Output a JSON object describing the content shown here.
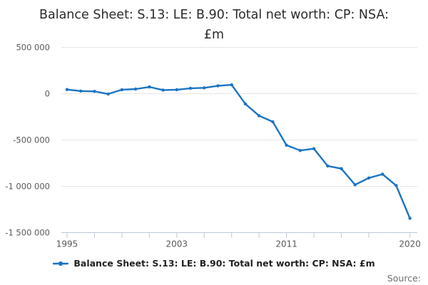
{
  "title": {
    "text": "Balance Sheet: S.13: LE: B.90: Total net worth: CP: NSA: £m",
    "lines": [
      "Balance Sheet: S.13: LE: B.90: Total net worth: CP: NSA:",
      "£m"
    ]
  },
  "source": {
    "label": "Source:"
  },
  "colors": {
    "series_blue": "#1b74c4",
    "gridline": "#e6e6e6",
    "axis": "#bcc9d8",
    "axis_text": "#595959",
    "title_text": "#2b2b2b",
    "legend_text": "#222222",
    "source_text": "#6e6e6e",
    "background": "#ffffff"
  },
  "chart_data": {
    "type": "line",
    "title": "Balance Sheet: S.13: LE: B.90: Total net worth: CP: NSA: £m",
    "xlabel": "",
    "ylabel": "",
    "unit": "£m",
    "grid": "horizontal",
    "legend_position": "bottom",
    "marker": "circle",
    "ylim": [
      -1500000,
      500000
    ],
    "xlim": [
      1995,
      2020
    ],
    "x": [
      1995,
      1996,
      1997,
      1998,
      1999,
      2000,
      2001,
      2002,
      2003,
      2004,
      2005,
      2006,
      2007,
      2008,
      2009,
      2010,
      2011,
      2012,
      2013,
      2014,
      2015,
      2016,
      2017,
      2018,
      2019,
      2020
    ],
    "series": [
      {
        "name": "Balance Sheet: S.13: LE: B.90: Total net worth: CP: NSA: £m",
        "values": [
          45000,
          28000,
          25000,
          -3000,
          43000,
          50000,
          73000,
          39000,
          43000,
          58000,
          63000,
          85000,
          96000,
          -110000,
          -238000,
          -303000,
          -556000,
          -613000,
          -594000,
          -780000,
          -809000,
          -983000,
          -910000,
          -869000,
          -992000,
          -1345000
        ]
      }
    ],
    "y_ticks": [
      {
        "value": 500000,
        "label": "500 000"
      },
      {
        "value": 0,
        "label": "0"
      },
      {
        "value": -500000,
        "label": "-500 000"
      },
      {
        "value": -1000000,
        "label": "-1 000 000"
      },
      {
        "value": -1500000,
        "label": "-1 500 000"
      }
    ],
    "x_tick_years": [
      1995,
      1997,
      1999,
      2001,
      2003,
      2005,
      2007,
      2009,
      2011,
      2013,
      2015,
      2017,
      2020
    ],
    "x_labels": [
      {
        "year": 1995,
        "text": "1995"
      },
      {
        "year": 2003,
        "text": "2003"
      },
      {
        "year": 2011,
        "text": "2011"
      },
      {
        "year": 2020,
        "text": "2020"
      }
    ]
  }
}
